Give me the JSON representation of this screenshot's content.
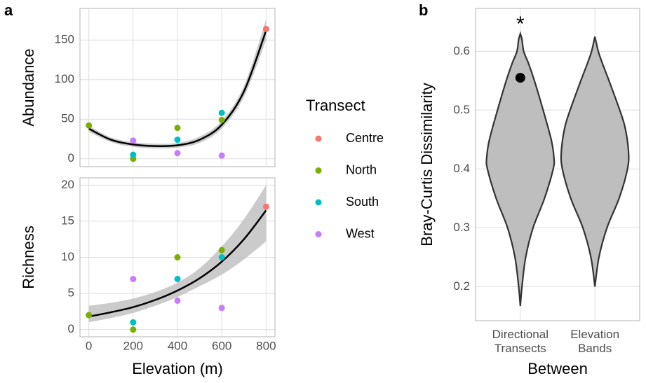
{
  "chart_data": [
    {
      "type": "scatter",
      "panel_tag": "a",
      "x_label": "Elevation (m)",
      "xlim": [
        -40,
        840
      ],
      "xticks": [
        0,
        200,
        400,
        600,
        800
      ],
      "legend": {
        "title": "Transect",
        "entries": [
          {
            "name": "Centre",
            "color": "#F8766D"
          },
          {
            "name": "North",
            "color": "#7CAE00"
          },
          {
            "name": "South",
            "color": "#00BFC4"
          },
          {
            "name": "West",
            "color": "#C77CFF"
          }
        ]
      },
      "fit_color": "#000000",
      "ribbon_color": "#bebebe",
      "grid": true,
      "facets": [
        {
          "y_label": "Abundance",
          "ylim": [
            -10,
            190
          ],
          "yticks": [
            0,
            50,
            100,
            150
          ],
          "series": [
            {
              "x": [
                800
              ],
              "values": [
                164
              ]
            },
            {
              "x": [
                0,
                200,
                400,
                600
              ],
              "values": [
                42,
                0,
                39,
                49
              ]
            },
            {
              "x": [
                200,
                400,
                600
              ],
              "values": [
                5,
                24,
                58
              ]
            },
            {
              "x": [
                200,
                400,
                600
              ],
              "values": [
                23,
                7,
                4
              ]
            }
          ],
          "fit": {
            "x": [
              0,
              100,
              200,
              300,
              400,
              500,
              600,
              700,
              800
            ],
            "values": [
              38,
              24,
              18,
              16,
              17,
              24,
              43,
              85,
              162
            ],
            "lower": [
              34,
              21,
              15,
              13,
              14,
              20,
              38,
              78,
              150
            ],
            "upper": [
              42,
              27,
              21,
              19,
              20,
              28,
              48,
              92,
              176
            ]
          }
        },
        {
          "y_label": "Richness",
          "ylim": [
            -1,
            21
          ],
          "yticks": [
            0,
            5,
            10,
            15,
            20
          ],
          "series": [
            {
              "x": [
                800
              ],
              "values": [
                17
              ]
            },
            {
              "x": [
                0,
                200,
                400,
                600
              ],
              "values": [
                2,
                0,
                10,
                11
              ]
            },
            {
              "x": [
                200,
                400,
                600
              ],
              "values": [
                1,
                7,
                10
              ]
            },
            {
              "x": [
                200,
                400,
                600
              ],
              "values": [
                7,
                4,
                3
              ]
            }
          ],
          "fit": {
            "x": [
              0,
              100,
              200,
              300,
              400,
              500,
              600,
              700,
              800
            ],
            "values": [
              1.8,
              2.4,
              3.1,
              4.1,
              5.4,
              7.1,
              9.4,
              12.5,
              16.5
            ],
            "lower": [
              1.0,
              1.6,
              2.3,
              3.3,
              4.5,
              6.0,
              7.6,
              9.7,
              12.2
            ],
            "upper": [
              3.3,
              3.7,
              4.3,
              5.2,
              6.5,
              8.5,
              11.5,
              15.3,
              20.0
            ]
          }
        }
      ]
    },
    {
      "type": "violin",
      "panel_tag": "b",
      "x_label": "Between",
      "y_label": "Bray-Curtis Dissimilarity",
      "categories": [
        "Directional\nTransects",
        "Elevation\nBands"
      ],
      "ylim": [
        0.142,
        0.673
      ],
      "yticks": [
        0.2,
        0.3,
        0.4,
        0.5,
        0.6
      ],
      "grid": true,
      "fill": "#bebebe",
      "stroke": "#333333",
      "point_color": "#000000",
      "annotation": {
        "text": "*",
        "category": 0
      },
      "violins": [
        {
          "y": [
            0.167,
            0.2,
            0.25,
            0.3,
            0.35,
            0.4,
            0.42,
            0.45,
            0.5,
            0.55,
            0.58,
            0.6,
            0.62,
            0.63
          ],
          "density": [
            0,
            0.05,
            0.16,
            0.38,
            0.72,
            0.98,
            1.0,
            0.92,
            0.68,
            0.42,
            0.24,
            0.1,
            0.05,
            0
          ],
          "point": 0.555
        },
        {
          "y": [
            0.2,
            0.25,
            0.3,
            0.35,
            0.4,
            0.43,
            0.47,
            0.5,
            0.55,
            0.58,
            0.6,
            0.625
          ],
          "density": [
            0,
            0.12,
            0.36,
            0.72,
            0.97,
            1.0,
            0.9,
            0.74,
            0.42,
            0.22,
            0.1,
            0
          ]
        }
      ]
    }
  ]
}
